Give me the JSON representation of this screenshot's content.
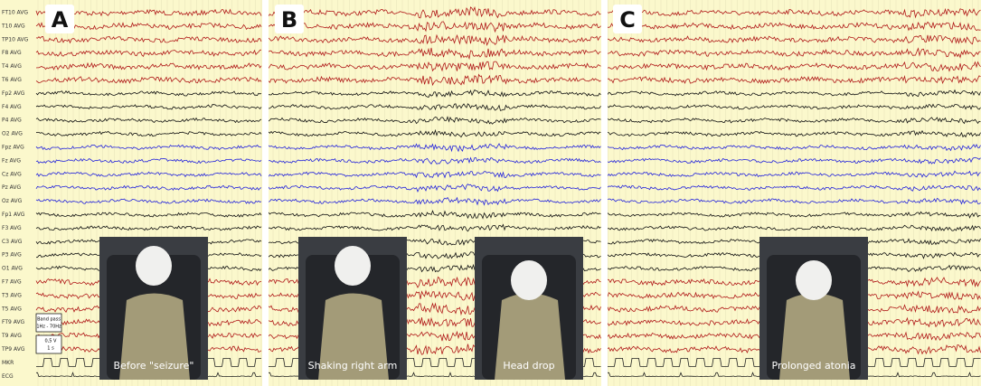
{
  "panels": [
    {
      "label": "A"
    },
    {
      "label": "B"
    },
    {
      "label": "C"
    }
  ],
  "channels": [
    "FT10 AVG",
    "T10 AVG",
    "TP10 AVG",
    "F8 AVG",
    "T4 AVG",
    "T6 AVG",
    "Fp2 AVG",
    "F4 AVG",
    "P4 AVG",
    "O2 AVG",
    "Fpz AVG",
    "Fz AVG",
    "Cz AVG",
    "Pz AVG",
    "Oz AVG",
    "Fp1 AVG",
    "F3 AVG",
    "C3 AVG",
    "P3 AVG",
    "O1 AVG",
    "F7 AVG",
    "T3 AVG",
    "T5 AVG",
    "FT9 AVG",
    "T9 AVG",
    "TP9 AVG",
    "MKR",
    "ECG"
  ],
  "photos": [
    {
      "caption": "Before \"seizure\""
    },
    {
      "caption": "Shaking right arm"
    },
    {
      "caption": "Head drop"
    },
    {
      "caption": "Prolonged atonia"
    }
  ],
  "legend": {
    "filter": [
      "Band pass",
      "1Hz - 70Hz"
    ],
    "scale": [
      "0,5 V",
      "1 s"
    ]
  }
}
